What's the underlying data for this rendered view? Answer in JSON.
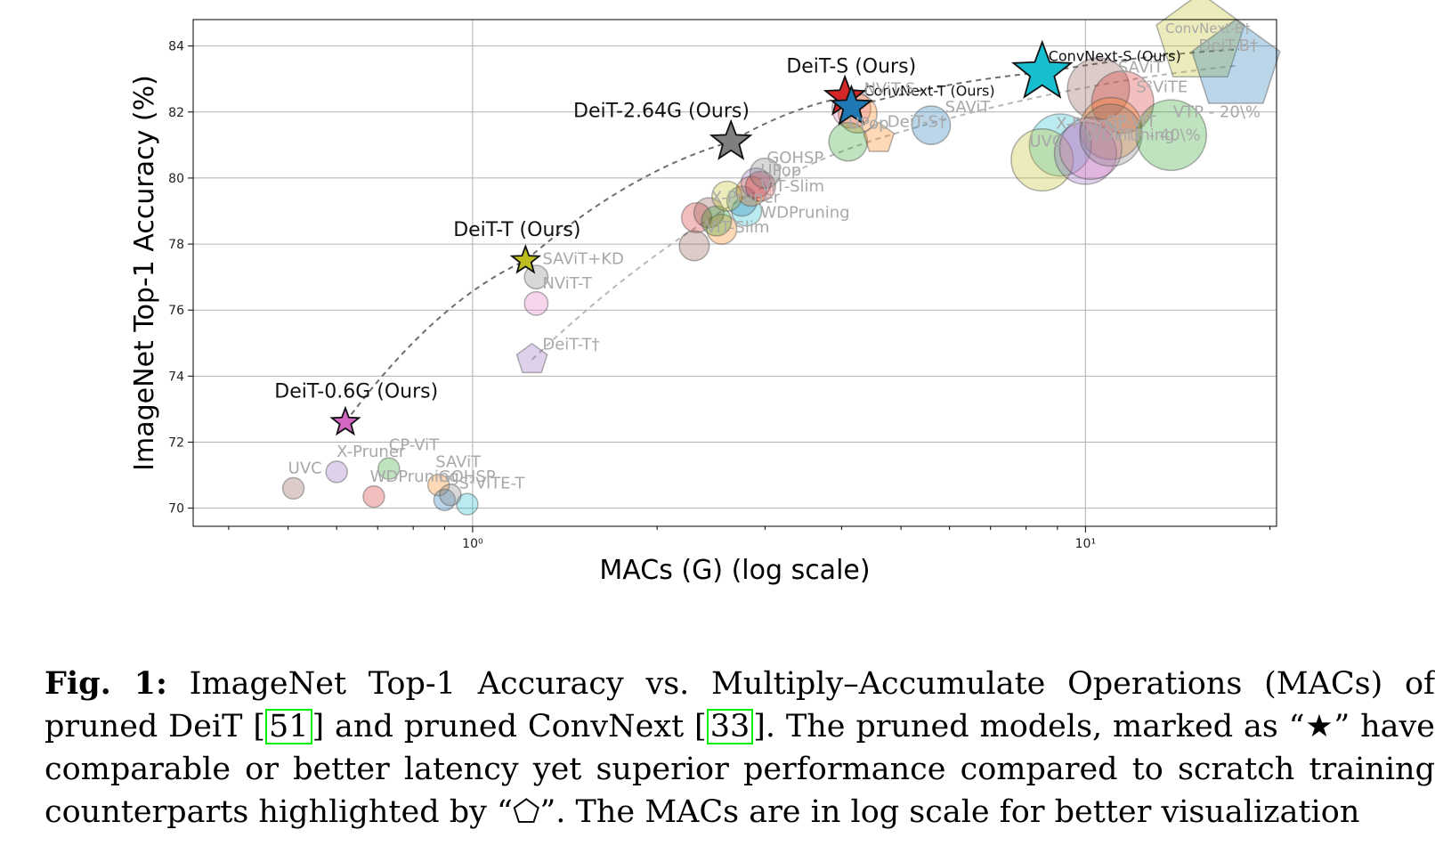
{
  "chart_data": {
    "type": "scatter",
    "title": "",
    "xlabel": "MACs (G) (log scale)",
    "ylabel": "ImageNet Top-1 Accuracy (%)",
    "xscale": "log",
    "xlim": [
      0.35,
      20.5
    ],
    "ylim": [
      69.45,
      84.8
    ],
    "xticks": [
      {
        "value": 1,
        "label": "10⁰"
      },
      {
        "value": 10,
        "label": "10¹"
      }
    ],
    "yticks": [
      70,
      72,
      74,
      76,
      78,
      80,
      82,
      84
    ],
    "grid": true,
    "ours_stars": [
      {
        "label": "DeiT-0.6G (Ours)",
        "x": 0.62,
        "y": 72.6,
        "color": "#d467c1",
        "size": "small"
      },
      {
        "label": "DeiT-T (Ours)",
        "x": 1.22,
        "y": 77.5,
        "color": "#bdbd22",
        "size": "small"
      },
      {
        "label": "DeiT-2.64G (Ours)",
        "x": 2.64,
        "y": 81.1,
        "color": "#7f7f7f",
        "size": "medium"
      },
      {
        "label": "DeiT-S (Ours)",
        "x": 4.05,
        "y": 82.45,
        "color": "#d62728",
        "size": "medium"
      },
      {
        "label": "ConvNext-T (Ours)",
        "x": 4.15,
        "y": 82.15,
        "color": "#1f77b4",
        "size": "medium"
      },
      {
        "label": "ConvNext-S (Ours)",
        "x": 8.5,
        "y": 83.2,
        "color": "#17becf",
        "size": "large"
      }
    ],
    "scratch_pentagons": [
      {
        "label": "DeiT-T†",
        "x": 1.25,
        "y": 74.5,
        "color": "#9467bd"
      },
      {
        "label": "DeiT-S†",
        "x": 4.6,
        "y": 81.2,
        "color": "#ff7f0e"
      },
      {
        "label": "ConvNext-B†",
        "x": 15.4,
        "y": 84.2,
        "color": "#bcbd22"
      },
      {
        "label": "DeiT-B†",
        "x": 17.6,
        "y": 83.4,
        "color": "#1f77b4"
      }
    ],
    "dashed_lines": [
      {
        "name": "deit-ours",
        "points": [
          [
            0.62,
            72.6
          ],
          [
            1.22,
            77.5
          ],
          [
            2.64,
            81.1
          ],
          [
            4.05,
            82.45
          ]
        ]
      },
      {
        "name": "convnext-ours",
        "points": [
          [
            4.15,
            82.15
          ],
          [
            8.5,
            83.2
          ],
          [
            17.8,
            83.9
          ]
        ]
      },
      {
        "name": "deit-scratch",
        "points": [
          [
            1.25,
            74.5
          ],
          [
            4.6,
            81.2
          ],
          [
            17.6,
            83.4
          ]
        ]
      }
    ],
    "baseline_circles": [
      {
        "label": "UVC",
        "x": 0.51,
        "y": 70.6,
        "color": "#8c564b",
        "size": 1
      },
      {
        "label": "X-Pruner",
        "x": 0.6,
        "y": 71.1,
        "color": "#9467bd",
        "size": 1
      },
      {
        "label": "WDPruning",
        "x": 0.69,
        "y": 70.35,
        "color": "#d62728",
        "size": 1
      },
      {
        "label": "CP-ViT",
        "x": 0.73,
        "y": 71.2,
        "color": "#2ca02c",
        "size": 1
      },
      {
        "label": "SAViT",
        "x": 0.88,
        "y": 70.7,
        "color": "#ff7f0e",
        "size": 1
      },
      {
        "label": "",
        "x": 0.9,
        "y": 70.25,
        "color": "#1f77b4",
        "size": 1
      },
      {
        "label": "S²ViTE-T",
        "x": 0.98,
        "y": 70.12,
        "color": "#17becf",
        "size": 1
      },
      {
        "label": "GOHSP",
        "x": 0.92,
        "y": 70.4,
        "color": "#7f7f7f",
        "size": 1
      },
      {
        "label": "SAViT+KD",
        "x": 1.27,
        "y": 77.0,
        "color": "#7f7f7f",
        "size": 1.1
      },
      {
        "label": "NViT-T",
        "x": 1.27,
        "y": 76.2,
        "color": "#e377c2",
        "size": 1.1
      },
      {
        "label": "ViT-Slim",
        "x": 2.55,
        "y": 78.45,
        "color": "#ff7f0e",
        "size": 1.4
      },
      {
        "label": "",
        "x": 2.32,
        "y": 78.8,
        "color": "#d62728",
        "size": 1.4
      },
      {
        "label": "",
        "x": 2.43,
        "y": 78.95,
        "color": "#8c564b",
        "size": 1.4
      },
      {
        "label": "",
        "x": 2.5,
        "y": 78.7,
        "color": "#2ca02c",
        "size": 1.4
      },
      {
        "label": "",
        "x": 2.3,
        "y": 77.95,
        "color": "#8c564b",
        "size": 1.4
      },
      {
        "label": "WDPruning",
        "x": 2.8,
        "y": 79.0,
        "color": "#17becf",
        "size": 1.4
      },
      {
        "label": "X-Pruner",
        "x": 2.75,
        "y": 79.3,
        "color": "#1f77b4",
        "size": 1.4
      },
      {
        "label": "UVC",
        "x": 2.6,
        "y": 79.45,
        "color": "#bcbd22",
        "size": 1.4
      },
      {
        "label": "ViT-Slim",
        "x": 2.85,
        "y": 79.6,
        "color": "#ff7f0e",
        "size": 1.4
      },
      {
        "label": "CP-ViT",
        "x": 2.9,
        "y": 79.85,
        "color": "#9467bd",
        "size": 1.4
      },
      {
        "label": "",
        "x": 2.95,
        "y": 79.75,
        "color": "#d62728",
        "size": 1.4
      },
      {
        "label": "GOHSP",
        "x": 3.0,
        "y": 80.15,
        "color": "#7f7f7f",
        "size": 1.4
      },
      {
        "label": "NViT-S",
        "x": 4.15,
        "y": 82.1,
        "color": "#e377c2",
        "size": 1.8
      },
      {
        "label": "",
        "x": 4.25,
        "y": 81.95,
        "color": "#ff7f0e",
        "size": 1.8
      },
      {
        "label": "UPop",
        "x": 4.1,
        "y": 81.1,
        "color": "#2ca02c",
        "size": 1.8
      },
      {
        "label": "SAViT",
        "x": 5.6,
        "y": 81.6,
        "color": "#1f77b4",
        "size": 1.8
      },
      {
        "label": "SAViT",
        "x": 10.5,
        "y": 82.7,
        "color": "#8c564b",
        "size": 2.9
      },
      {
        "label": "S²ViTE",
        "x": 11.5,
        "y": 82.3,
        "color": "#d62728",
        "size": 2.9
      },
      {
        "label": "CP-ViT",
        "x": 11.0,
        "y": 81.5,
        "color": "#ff7f0e",
        "size": 2.9
      },
      {
        "label": "X-Pruner",
        "x": 9.1,
        "y": 81.0,
        "color": "#17becf",
        "size": 2.9
      },
      {
        "label": "UVC",
        "x": 8.5,
        "y": 80.55,
        "color": "#bcbd22",
        "size": 2.9
      },
      {
        "label": "WDPruning",
        "x": 10.0,
        "y": 80.75,
        "color": "#9467bd",
        "size": 2.9
      },
      {
        "label": "",
        "x": 10.2,
        "y": 80.9,
        "color": "#e377c2",
        "size": 2.9
      },
      {
        "label": "VTP - 40\\%",
        "x": 11.0,
        "y": 81.3,
        "color": "#7f7f7f",
        "size": 2.9
      },
      {
        "label": "VTP - 20\\%",
        "x": 13.8,
        "y": 81.3,
        "color": "#2ca02c",
        "size": 3.3
      }
    ],
    "annotations": [
      {
        "text": "DeiT-0.6G (Ours)",
        "x": 0.475,
        "y": 73.35,
        "style": "dark"
      },
      {
        "text": "DeiT-T (Ours)",
        "x": 0.93,
        "y": 78.25,
        "style": "dark"
      },
      {
        "text": "DeiT-2.64G (Ours)",
        "x": 1.46,
        "y": 81.85,
        "style": "dark"
      },
      {
        "text": "DeiT-S (Ours)",
        "x": 3.25,
        "y": 83.2,
        "style": "dark"
      },
      {
        "text": "ConvNext-T (Ours)",
        "x": 4.35,
        "y": 82.5,
        "style": "dark-small"
      },
      {
        "text": "ConvNext-S (Ours)",
        "x": 8.7,
        "y": 83.55,
        "style": "dark-small"
      },
      {
        "text": "ConvNext-B†",
        "x": 13.5,
        "y": 84.4,
        "style": "grey-small"
      },
      {
        "text": "DeiT-B†",
        "x": 15.3,
        "y": 83.85,
        "style": "grey"
      },
      {
        "text": "SAViT",
        "x": 11.3,
        "y": 83.2,
        "style": "grey"
      },
      {
        "text": "S²ViTE",
        "x": 12.1,
        "y": 82.6,
        "style": "grey"
      },
      {
        "text": "VTP - 20\\%",
        "x": 13.9,
        "y": 81.85,
        "style": "grey"
      },
      {
        "text": "X-Pruner",
        "x": 8.95,
        "y": 81.5,
        "style": "grey"
      },
      {
        "text": "CP-ViT",
        "x": 10.8,
        "y": 81.55,
        "style": "grey"
      },
      {
        "text": "WDPruning",
        "x": 10.0,
        "y": 81.15,
        "style": "grey"
      },
      {
        "text": "VTP - 40\\%",
        "x": 11.1,
        "y": 81.15,
        "style": "grey"
      },
      {
        "text": "UVC",
        "x": 8.1,
        "y": 80.95,
        "style": "grey"
      },
      {
        "text": "SAViT",
        "x": 5.9,
        "y": 82.0,
        "style": "grey"
      },
      {
        "text": "DeiT-S†",
        "x": 4.75,
        "y": 81.55,
        "style": "grey"
      },
      {
        "text": "UPop",
        "x": 4.1,
        "y": 81.5,
        "style": "grey"
      },
      {
        "text": "NViT-S",
        "x": 4.35,
        "y": 82.55,
        "style": "grey"
      },
      {
        "text": "GOHSP",
        "x": 3.02,
        "y": 80.45,
        "style": "grey"
      },
      {
        "text": "UPop",
        "x": 2.95,
        "y": 80.08,
        "style": "grey"
      },
      {
        "text": "ViT-Slim",
        "x": 2.95,
        "y": 79.6,
        "style": "grey"
      },
      {
        "text": "X-Pruner",
        "x": 2.45,
        "y": 79.25,
        "style": "grey"
      },
      {
        "text": "WDPruning",
        "x": 2.95,
        "y": 78.8,
        "style": "grey"
      },
      {
        "text": "ViT-Slim",
        "x": 2.4,
        "y": 78.35,
        "style": "grey"
      },
      {
        "text": "SAViT+KD",
        "x": 1.3,
        "y": 77.4,
        "style": "grey"
      },
      {
        "text": "NViT-T",
        "x": 1.3,
        "y": 76.65,
        "style": "grey"
      },
      {
        "text": "DeiT-T†",
        "x": 1.3,
        "y": 74.8,
        "style": "grey"
      },
      {
        "text": "UVC",
        "x": 0.5,
        "y": 71.05,
        "style": "grey"
      },
      {
        "text": "X-Pruner",
        "x": 0.6,
        "y": 71.55,
        "style": "grey"
      },
      {
        "text": "CP-ViT",
        "x": 0.73,
        "y": 71.75,
        "style": "grey"
      },
      {
        "text": "WDPruning",
        "x": 0.68,
        "y": 70.8,
        "style": "grey"
      },
      {
        "text": "GOHSP",
        "x": 0.88,
        "y": 70.8,
        "style": "grey"
      },
      {
        "text": "SAViT",
        "x": 0.87,
        "y": 71.25,
        "style": "grey"
      },
      {
        "text": "S²ViTE-T",
        "x": 0.95,
        "y": 70.6,
        "style": "grey"
      }
    ]
  },
  "caption": {
    "label": "Fig. 1:",
    "part1": " ImageNet Top-1 Accuracy vs. Multiply–Accumulate Operations (MACs) of pruned DeiT ",
    "cite1": "51",
    "part2": " and pruned ConvNext ",
    "cite2": "33",
    "part3": ". The pruned models, marked as “★” have comparable or better latency yet superior performance compared to scratch training counterparts highlighted by “⬠”. The MACs are in log scale for better visualization"
  }
}
